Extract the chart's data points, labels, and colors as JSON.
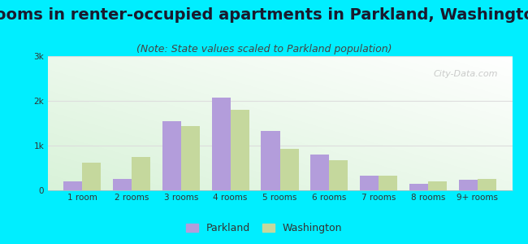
{
  "title": "Rooms in renter-occupied apartments in Parkland, Washington",
  "subtitle": "(Note: State values scaled to Parkland population)",
  "categories": [
    "1 room",
    "2 rooms",
    "3 rooms",
    "4 rooms",
    "5 rooms",
    "6 rooms",
    "7 rooms",
    "8 rooms",
    "9+ rooms"
  ],
  "parkland_values": [
    200,
    250,
    1550,
    2080,
    1320,
    800,
    330,
    150,
    230
  ],
  "washington_values": [
    620,
    750,
    1430,
    1800,
    930,
    680,
    320,
    200,
    250
  ],
  "parkland_color": "#b39ddb",
  "washington_color": "#c5d89d",
  "ylim": [
    0,
    3000
  ],
  "yticks": [
    0,
    1000,
    2000,
    3000
  ],
  "ytick_labels": [
    "0",
    "1k",
    "2k",
    "3k"
  ],
  "background_color": "#00eeff",
  "title_fontsize": 14,
  "subtitle_fontsize": 9,
  "bar_width": 0.38,
  "watermark": "City-Data.com"
}
